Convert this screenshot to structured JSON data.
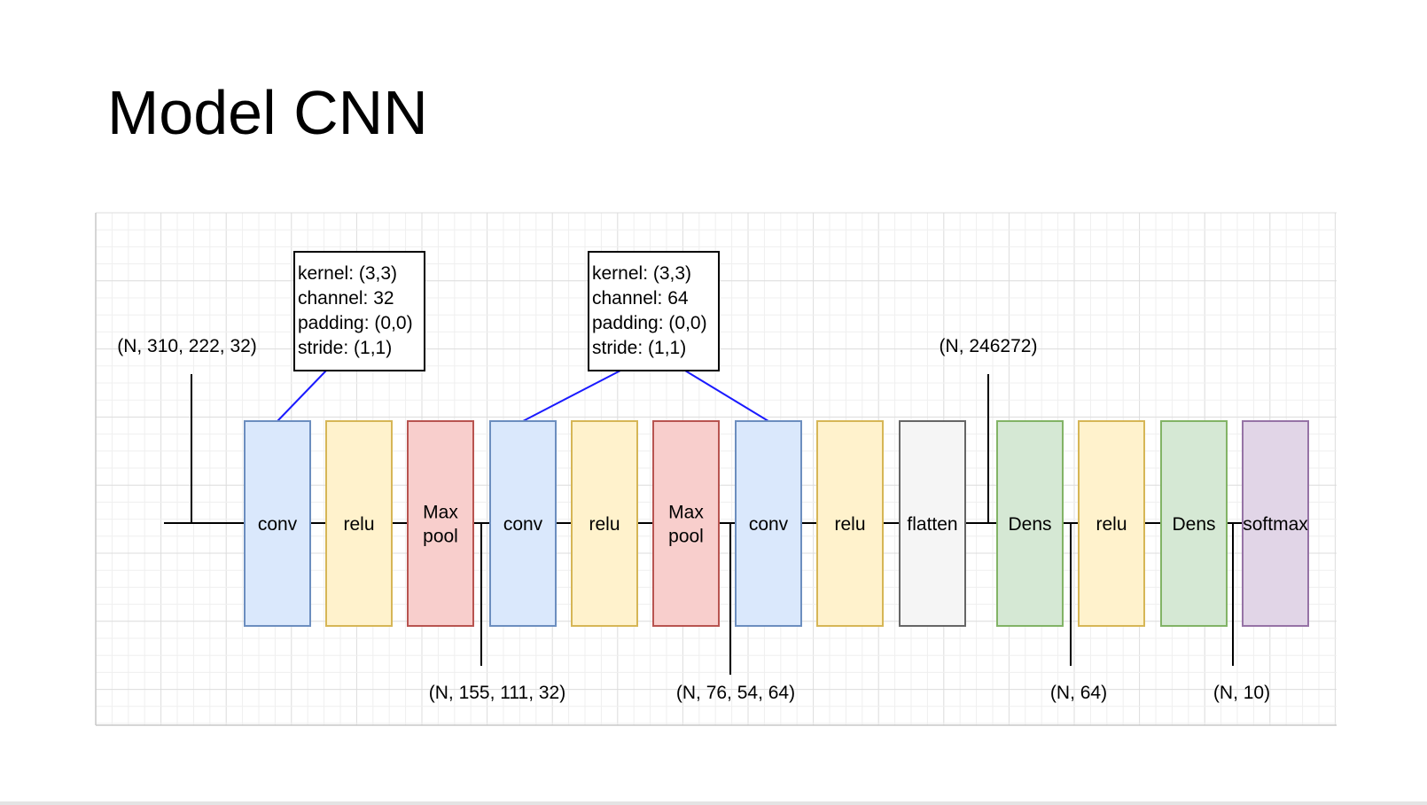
{
  "slide": {
    "title": "Model CNN"
  },
  "diagram": {
    "layers": [
      {
        "label": [
          "conv"
        ],
        "kind": "conv"
      },
      {
        "label": [
          "relu"
        ],
        "kind": "relu"
      },
      {
        "label": [
          "Max",
          "pool"
        ],
        "kind": "pool"
      },
      {
        "label": [
          "conv"
        ],
        "kind": "conv"
      },
      {
        "label": [
          "relu"
        ],
        "kind": "relu"
      },
      {
        "label": [
          "Max",
          "pool"
        ],
        "kind": "pool"
      },
      {
        "label": [
          "conv"
        ],
        "kind": "conv"
      },
      {
        "label": [
          "relu"
        ],
        "kind": "relu"
      },
      {
        "label": [
          "flatten"
        ],
        "kind": "flatten"
      },
      {
        "label": [
          "Dens"
        ],
        "kind": "dense"
      },
      {
        "label": [
          "relu"
        ],
        "kind": "relu"
      },
      {
        "label": [
          "Dens"
        ],
        "kind": "dense"
      },
      {
        "label": [
          "softmax"
        ],
        "kind": "softmax"
      }
    ],
    "styles": {
      "conv": {
        "fill": "#dae8fc",
        "stroke": "#6c8ebf"
      },
      "relu": {
        "fill": "#fff2cc",
        "stroke": "#d6b656"
      },
      "pool": {
        "fill": "#f8cecc",
        "stroke": "#b85450"
      },
      "flatten": {
        "fill": "#f5f5f5",
        "stroke": "#666666",
        "text": "#333333"
      },
      "dense": {
        "fill": "#d5e8d4",
        "stroke": "#82b366"
      },
      "softmax": {
        "fill": "#e1d5e7",
        "stroke": "#9673a6"
      }
    },
    "param_boxes": [
      {
        "lines": [
          "kernel: (3,3)",
          "channel: 32",
          "padding: (0,0)",
          "stride: (1,1)"
        ]
      },
      {
        "lines": [
          "kernel: (3,3)",
          "channel: 64",
          "padding: (0,0)",
          "stride: (1,1)"
        ]
      }
    ],
    "shape_labels": {
      "input": "(N, 310, 222, 32)",
      "pool1": "(N, 155, 111, 32)",
      "pool2": "(N, 76, 54, 64)",
      "flatten": "(N, 246272)",
      "dense1": "(N, 64)",
      "dense2": "(N, 10)"
    },
    "colors": {
      "connector": "#1a1aff",
      "line": "#000000",
      "grid": "#e4e4e4",
      "grid_border": "#c8c8c8"
    }
  }
}
